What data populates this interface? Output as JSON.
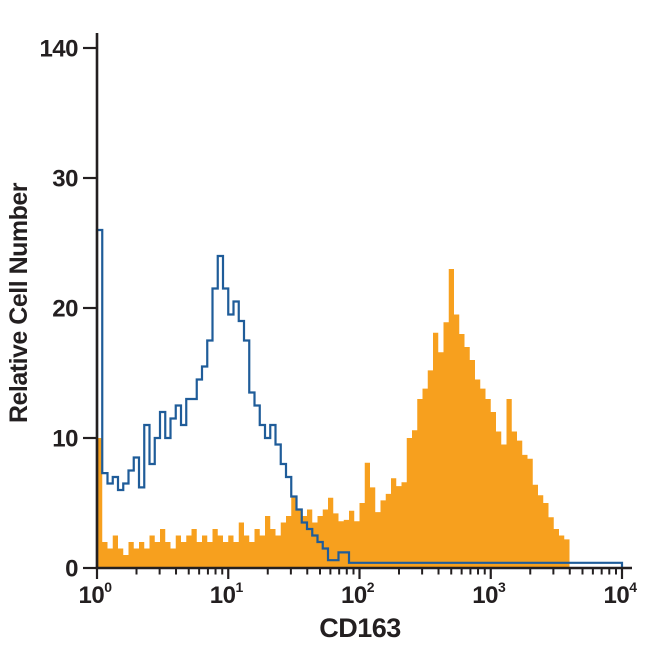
{
  "chart_data": {
    "type": "histogram-overlay",
    "title": "",
    "xlabel": "CD163",
    "ylabel": "Relative Cell Number",
    "x_scale": "log10",
    "x_decade_exponents": [
      0,
      1,
      2,
      3,
      4
    ],
    "x_tick_base": "10",
    "x_minor_multiples": [
      2,
      3,
      4,
      5,
      6,
      7,
      8,
      9
    ],
    "y_ticks": [
      "0",
      "10",
      "20",
      "30",
      "140"
    ],
    "y_units_per_tick": 10,
    "y_axis_note": "linear 0-30 region; top tick labeled 140 (compressed axis max)",
    "bins_per_decade": 25,
    "x_start_exponent": 0,
    "grid": "off",
    "legend": "none",
    "colors": {
      "filled": "#F7A01E",
      "outline": "#1F5C99",
      "axis": "#231F20",
      "background": "#FFFFFF"
    },
    "series": [
      {
        "name": "cd163-stained-filled-orange",
        "style": "filled",
        "color": "#F7A01E",
        "values": [
          10,
          2,
          1.5,
          2.5,
          1.5,
          1,
          2,
          1.5,
          2,
          1.5,
          2.5,
          2,
          3,
          2,
          1.5,
          2.5,
          2,
          2.5,
          3,
          2,
          2.5,
          2,
          3,
          2.5,
          2,
          2.5,
          2,
          3.5,
          2.5,
          2,
          3,
          2.5,
          4,
          3,
          2.5,
          3.5,
          4,
          5.5,
          4.5,
          4,
          4.5,
          3.5,
          4,
          4.5,
          5.4,
          4.2,
          3.6,
          3.7,
          4.4,
          3.6,
          5,
          8.1,
          6.2,
          4.3,
          5.2,
          5.7,
          6.9,
          6.3,
          6.6,
          10,
          10.6,
          13,
          13.8,
          15.2,
          18.1,
          16.6,
          18.9,
          23,
          19.5,
          18,
          17,
          16,
          14.5,
          13.8,
          13,
          12,
          10.5,
          9.5,
          13,
          10.5,
          9.8,
          8.7,
          8.4,
          6.4,
          5.6,
          5,
          3.9,
          3,
          2.5,
          2.2,
          0,
          0,
          0,
          0,
          0,
          0,
          0,
          0,
          0,
          0
        ]
      },
      {
        "name": "control-open-blue",
        "style": "outline",
        "color": "#1F5C99",
        "values": [
          26,
          7.3,
          6.5,
          7,
          6,
          6.5,
          7.5,
          8.5,
          6.2,
          11,
          8,
          10,
          12,
          10,
          11.5,
          12.5,
          11,
          13,
          13,
          14.5,
          15.5,
          17.5,
          21.5,
          24,
          21.5,
          19.5,
          20.5,
          19,
          17.5,
          13.5,
          12.5,
          11,
          10,
          11,
          9.5,
          8,
          7,
          5.5,
          4.5,
          3.5,
          3,
          2.5,
          2,
          1.5,
          0.6,
          0.6,
          1.2,
          1.2,
          0.4,
          0.4,
          0.4,
          0.4,
          0.4,
          0.4,
          0.4,
          0.4,
          0.4,
          0.4,
          0.4,
          0.4,
          0.4,
          0.4,
          0.4,
          0.4,
          0.4,
          0.4,
          0.4,
          0.4,
          0.4,
          0.4,
          0.4,
          0.4,
          0.4,
          0.4,
          0.4,
          0.4,
          0.4,
          0.4,
          0.4,
          0.4,
          0.4,
          0.4,
          0.4,
          0.4,
          0.4,
          0.4,
          0.4,
          0.4,
          0.4,
          0.4,
          0.4,
          0.4,
          0.4,
          0.4,
          0.4,
          0.4,
          0.4,
          0.4,
          0.4,
          0.4
        ]
      }
    ]
  }
}
